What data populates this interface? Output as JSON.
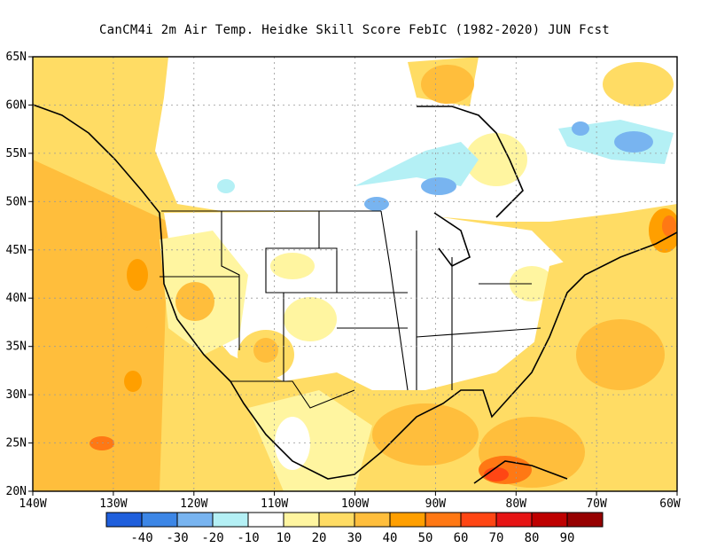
{
  "title": "CanCM4i  2m Air Temp. Heidke Skill Score FebIC (1982-2020) JUN Fcst",
  "lat_labels": [
    "65N",
    "60N",
    "55N",
    "50N",
    "45N",
    "40N",
    "35N",
    "30N",
    "25N",
    "20N"
  ],
  "lon_labels": [
    "140W",
    "130W",
    "120W",
    "110W",
    "100W",
    "90W",
    "80W",
    "70W",
    "60W"
  ],
  "colorbar": {
    "colors": [
      "#1f5fdc",
      "#3c86e6",
      "#78b4f0",
      "#b4f0f5",
      "#ffffff",
      "#fff5a0",
      "#ffdc64",
      "#ffbe3c",
      "#ff9f00",
      "#ff7814",
      "#ff4614",
      "#e61414",
      "#be0000",
      "#960000"
    ],
    "labels": [
      "-40",
      "-30",
      "-20",
      "-10",
      "10",
      "20",
      "30",
      "40",
      "50",
      "60",
      "70",
      "80",
      "90"
    ]
  }
}
